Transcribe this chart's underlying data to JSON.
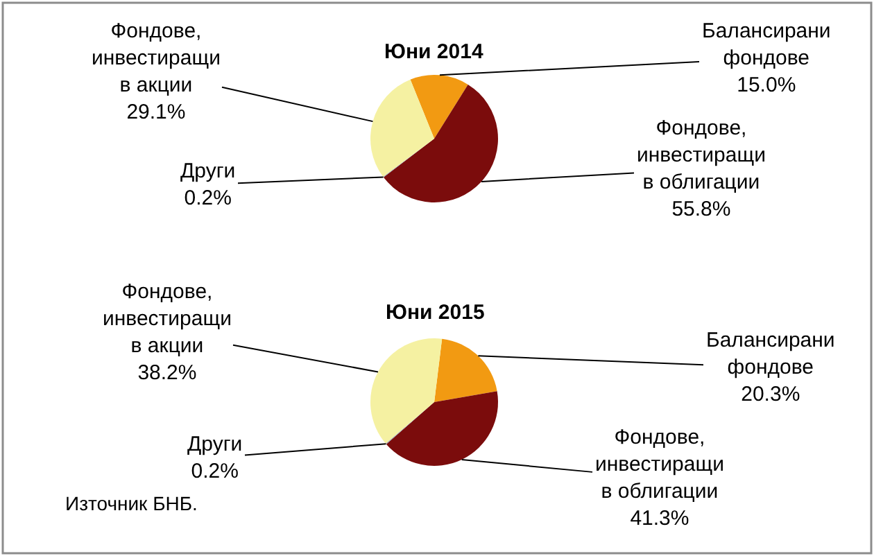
{
  "chart_data": [
    {
      "type": "pie",
      "title": "Юни 2014",
      "categories": [
        "Балансирани фондове",
        "Фондове, инвестиращи в облигации",
        "Други",
        "Фондове, инвестиращи в акции"
      ],
      "values": [
        15.0,
        55.8,
        0.2,
        29.1
      ],
      "value_labels": [
        "15.0%",
        "55.8%",
        "0.2%",
        "29.1%"
      ],
      "colors": [
        "#f29a12",
        "#7b0c0c",
        "#9aa6b8",
        "#f5f1a2"
      ]
    },
    {
      "type": "pie",
      "title": "Юни 2015",
      "categories": [
        "Балансирани фондове",
        "Фондове, инвестиращи в облигации",
        "Други",
        "Фондове, инвестиращи в акции"
      ],
      "values": [
        20.3,
        41.3,
        0.2,
        38.2
      ],
      "value_labels": [
        "20.3%",
        "41.3%",
        "0.2%",
        "38.2%"
      ],
      "colors": [
        "#f29a12",
        "#7b0c0c",
        "#9aa6b8",
        "#f5f1a2"
      ],
      "annotations": [
        "Източник БНБ."
      ]
    }
  ]
}
